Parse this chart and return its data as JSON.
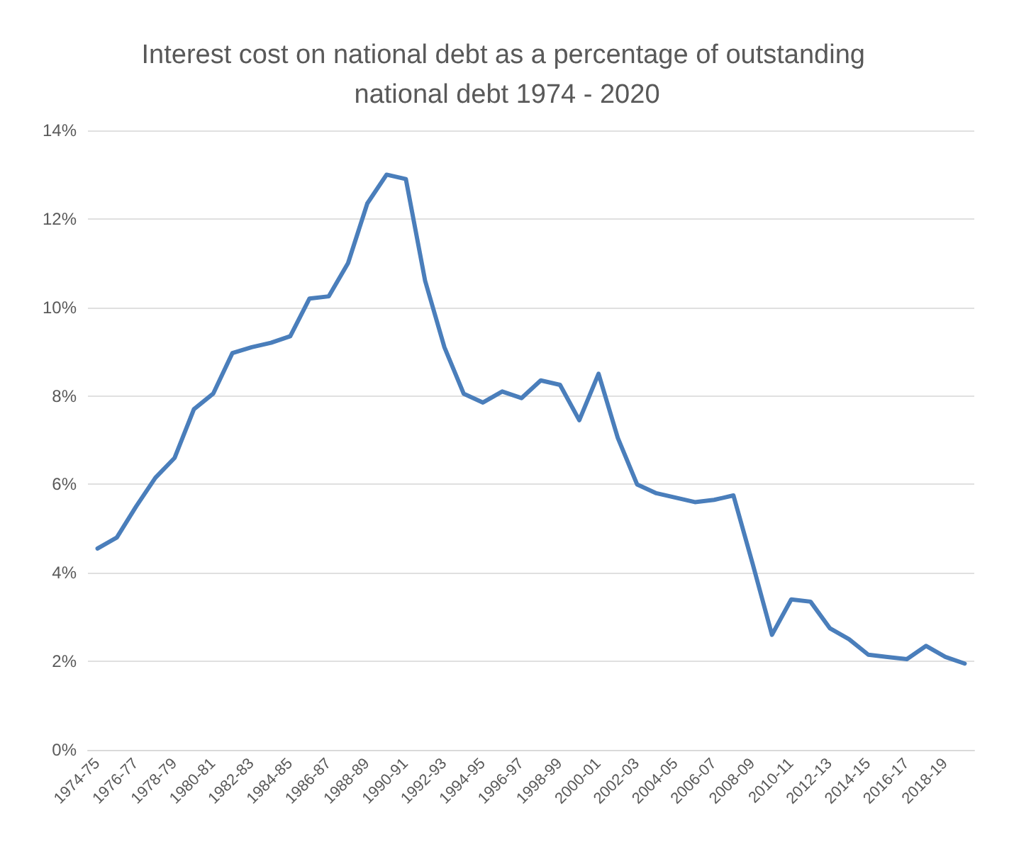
{
  "chart_data": {
    "type": "line",
    "title": "Interest cost on national debt as a percentage of outstanding national debt 1974 - 2020",
    "categories": [
      "1974-75",
      null,
      "1976-77",
      null,
      "1978-79",
      null,
      "1980-81",
      null,
      "1982-83",
      null,
      "1984-85",
      null,
      "1986-87",
      null,
      "1988-89",
      null,
      "1990-91",
      null,
      "1992-93",
      null,
      "1994-95",
      null,
      "1996-97",
      null,
      "1998-99",
      null,
      "2000-01",
      null,
      "2002-03",
      null,
      "2004-05",
      null,
      "2006-07",
      null,
      "2008-09",
      null,
      "2010-11",
      null,
      "2012-13",
      null,
      "2014-15",
      null,
      "2016-17",
      null,
      "2018-19",
      null
    ],
    "series": [
      {
        "color": "#4a7ebb",
        "values": [
          4.55,
          4.8,
          5.5,
          6.15,
          6.6,
          7.7,
          8.05,
          8.97,
          9.1,
          9.2,
          9.35,
          10.2,
          10.25,
          11.0,
          12.35,
          13.0,
          12.9,
          10.6,
          9.1,
          8.05,
          7.85,
          8.1,
          7.95,
          8.35,
          8.25,
          7.45,
          8.5,
          7.05,
          6.0,
          5.8,
          5.7,
          5.6,
          5.65,
          5.75,
          4.2,
          2.6,
          3.4,
          3.35,
          2.75,
          2.5,
          2.15,
          2.1,
          2.05,
          2.35,
          2.1,
          1.95
        ]
      }
    ],
    "ylim": [
      0,
      14
    ],
    "yticks": [
      {
        "value": 0,
        "label": "0%"
      },
      {
        "value": 2,
        "label": "2%"
      },
      {
        "value": 4,
        "label": "4%"
      },
      {
        "value": 6,
        "label": "6%"
      },
      {
        "value": 8,
        "label": "8%"
      },
      {
        "value": 10,
        "label": "10%"
      },
      {
        "value": 12,
        "label": "12%"
      },
      {
        "value": 14,
        "label": "14%"
      }
    ],
    "grid": "y",
    "marker": "none",
    "line_style": "solid"
  }
}
